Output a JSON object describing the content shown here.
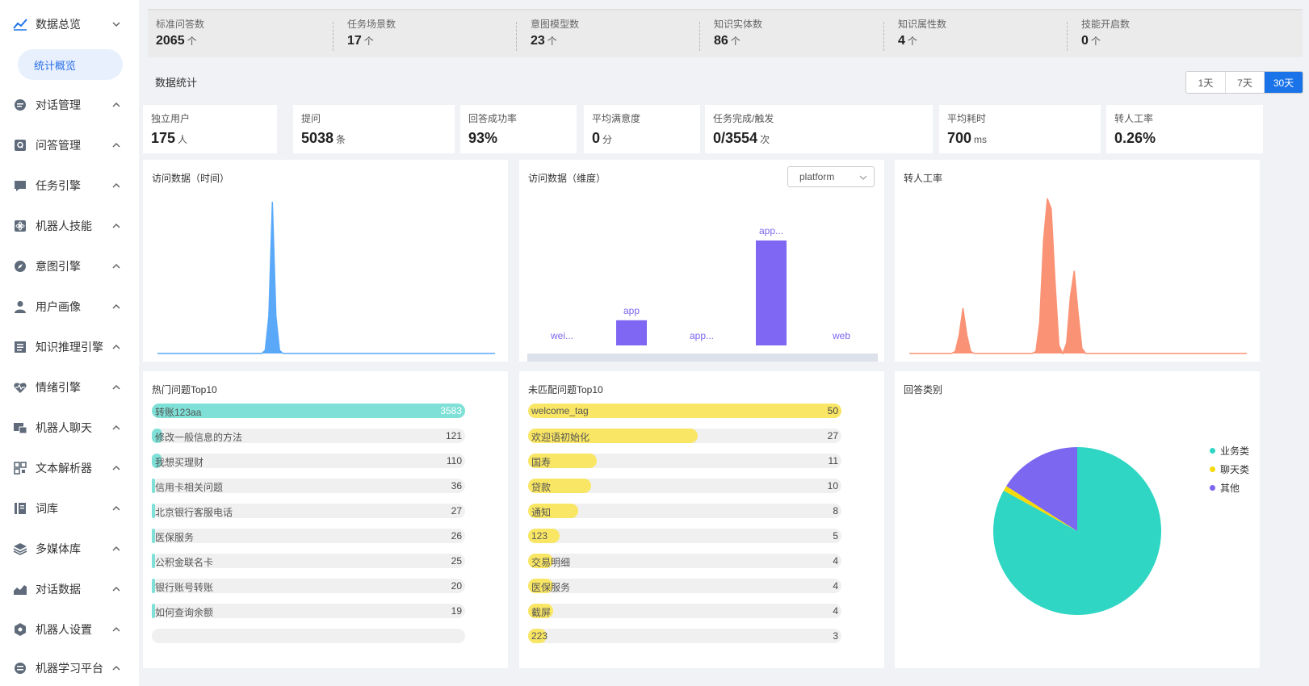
{
  "sidebar": {
    "items": [
      {
        "label": "数据总览",
        "icon": "chart-line-icon",
        "expanded": true
      },
      {
        "label": "对话管理",
        "icon": "chat-bubble-icon"
      },
      {
        "label": "问答管理",
        "icon": "qa-icon"
      },
      {
        "label": "任务引擎",
        "icon": "message-square-icon"
      },
      {
        "label": "机器人技能",
        "icon": "atom-icon"
      },
      {
        "label": "意图引擎",
        "icon": "compass-icon"
      },
      {
        "label": "用户画像",
        "icon": "user-icon"
      },
      {
        "label": "知识推理引擎",
        "icon": "document-icon"
      },
      {
        "label": "情绪引擎",
        "icon": "heart-pulse-icon"
      },
      {
        "label": "机器人聊天",
        "icon": "chat-robot-icon"
      },
      {
        "label": "文本解析器",
        "icon": "grid-scan-icon"
      },
      {
        "label": "词库",
        "icon": "book-icon"
      },
      {
        "label": "多媒体库",
        "icon": "layers-icon"
      },
      {
        "label": "对话数据",
        "icon": "chart-area-icon"
      },
      {
        "label": "机器人设置",
        "icon": "hexagon-gear-icon"
      },
      {
        "label": "机器学习平台",
        "icon": "ml-icon"
      }
    ],
    "sub_active": "统计概览"
  },
  "kpis": [
    {
      "label": "标准问答数",
      "value": "2065",
      "unit": "个"
    },
    {
      "label": "任务场景数",
      "value": "17",
      "unit": "个"
    },
    {
      "label": "意图模型数",
      "value": "23",
      "unit": "个"
    },
    {
      "label": "知识实体数",
      "value": "86",
      "unit": "个"
    },
    {
      "label": "知识属性数",
      "value": "4",
      "unit": "个"
    },
    {
      "label": "技能开启数",
      "value": "0",
      "unit": "个"
    }
  ],
  "stats_section": {
    "title": "数据统计",
    "ranges": [
      "1天",
      "7天",
      "30天"
    ],
    "active_range": "30天"
  },
  "stat_cards": [
    {
      "label": "独立用户",
      "value": "175",
      "unit": "人"
    },
    {
      "label": "提问",
      "value": "5038",
      "unit": "条"
    },
    {
      "label": "回答成功率",
      "value": "93%",
      "unit": ""
    },
    {
      "label": "平均满意度",
      "value": "0",
      "unit": "分"
    },
    {
      "label": "任务完成/触发",
      "value": "0/3554",
      "unit": "次"
    },
    {
      "label": "平均耗时",
      "value": "700",
      "unit": "ms"
    },
    {
      "label": "转人工率",
      "value": "0.26%",
      "unit": ""
    }
  ],
  "panels": {
    "visits_time": {
      "title": "访问数据（时间）"
    },
    "visits_dim": {
      "title": "访问数据（维度）",
      "dropdown": "platform"
    },
    "transfer": {
      "title": "转人工率"
    },
    "hot": {
      "title": "热门问题Top10"
    },
    "unmatched": {
      "title": "未匹配问题Top10"
    },
    "answer_type": {
      "title": "回答类别"
    }
  },
  "chart_data": [
    {
      "type": "area",
      "title": "访问数据（时间）",
      "series": [
        {
          "values": [
            0,
            0,
            0,
            0,
            0,
            0,
            0,
            0,
            0,
            0,
            0,
            0,
            0,
            0,
            0,
            0,
            0,
            0,
            0,
            0,
            0,
            0,
            0,
            0,
            0,
            0,
            0,
            0,
            0,
            0,
            3,
            36,
            146,
            36,
            3,
            0,
            0,
            0,
            0,
            0,
            0,
            0,
            0,
            0,
            0,
            0,
            0,
            0,
            0,
            0,
            0,
            0,
            0,
            0,
            0,
            0,
            0,
            0,
            0,
            0,
            0,
            0,
            0,
            0,
            0,
            0,
            0,
            0,
            0,
            0,
            0,
            0,
            0,
            0,
            0,
            0,
            0,
            0,
            0,
            0,
            0,
            0,
            0,
            0,
            0,
            0,
            0,
            0,
            0,
            0,
            0,
            0,
            0,
            0,
            0
          ]
        }
      ],
      "color": "#5aa9f8"
    },
    {
      "type": "bar",
      "title": "访问数据（维度）",
      "categories": [
        "wei...",
        "app",
        "app...",
        "app...",
        "web"
      ],
      "values": [
        0,
        24,
        0,
        100,
        0
      ],
      "color": "#8067f3"
    },
    {
      "type": "area",
      "title": "转人工率",
      "series": [
        {
          "values": [
            0,
            0,
            0,
            0,
            0,
            0,
            0,
            0,
            0,
            0,
            0,
            0,
            2,
            18,
            44,
            18,
            2,
            0,
            0,
            0,
            0,
            0,
            0,
            0,
            0,
            0,
            0,
            0,
            0,
            0,
            0,
            0,
            0,
            2,
            30,
            110,
            150,
            140,
            70,
            8,
            0,
            10,
            55,
            80,
            40,
            5,
            0,
            0,
            0,
            0,
            0,
            0,
            0,
            0,
            0,
            0,
            0,
            0,
            0,
            0,
            0,
            0,
            0,
            0,
            0,
            0,
            0,
            0,
            0,
            0,
            0,
            0,
            0,
            0,
            0,
            0,
            0,
            0,
            0,
            0,
            0,
            0,
            0,
            0,
            0,
            0,
            0,
            0,
            0
          ]
        }
      ],
      "color": "#fa9375"
    },
    {
      "type": "bar",
      "title": "热门问题Top10",
      "categories": [
        "转账123aa",
        "修改一般信息的方法",
        "我想买理财",
        "信用卡相关问题",
        "北京银行客服电话",
        "医保服务",
        "公积金联名卡",
        "银行账号转账",
        "如何查询余额",
        ""
      ],
      "values": [
        3583,
        121,
        110,
        36,
        27,
        26,
        25,
        20,
        19,
        0
      ],
      "color": "#7ee0d6"
    },
    {
      "type": "bar",
      "title": "未匹配问题Top10",
      "categories": [
        "welcome_tag",
        "欢迎语初始化",
        "国寿",
        "贷款",
        "通知",
        "123",
        "交易明细",
        "医保服务",
        "截屏",
        "223"
      ],
      "values": [
        50,
        27,
        11,
        10,
        8,
        5,
        4,
        4,
        4,
        3
      ],
      "color": "#f9e664"
    },
    {
      "type": "pie",
      "title": "回答类别",
      "categories": [
        "业务类",
        "聊天类",
        "其他"
      ],
      "values": [
        83,
        1,
        16
      ],
      "colors": [
        "#2fd6c4",
        "#f5d90a",
        "#7b67f0"
      ]
    }
  ],
  "colors": {
    "accent": "#1a73e8",
    "sub_active_bg": "#e8f0fd"
  }
}
